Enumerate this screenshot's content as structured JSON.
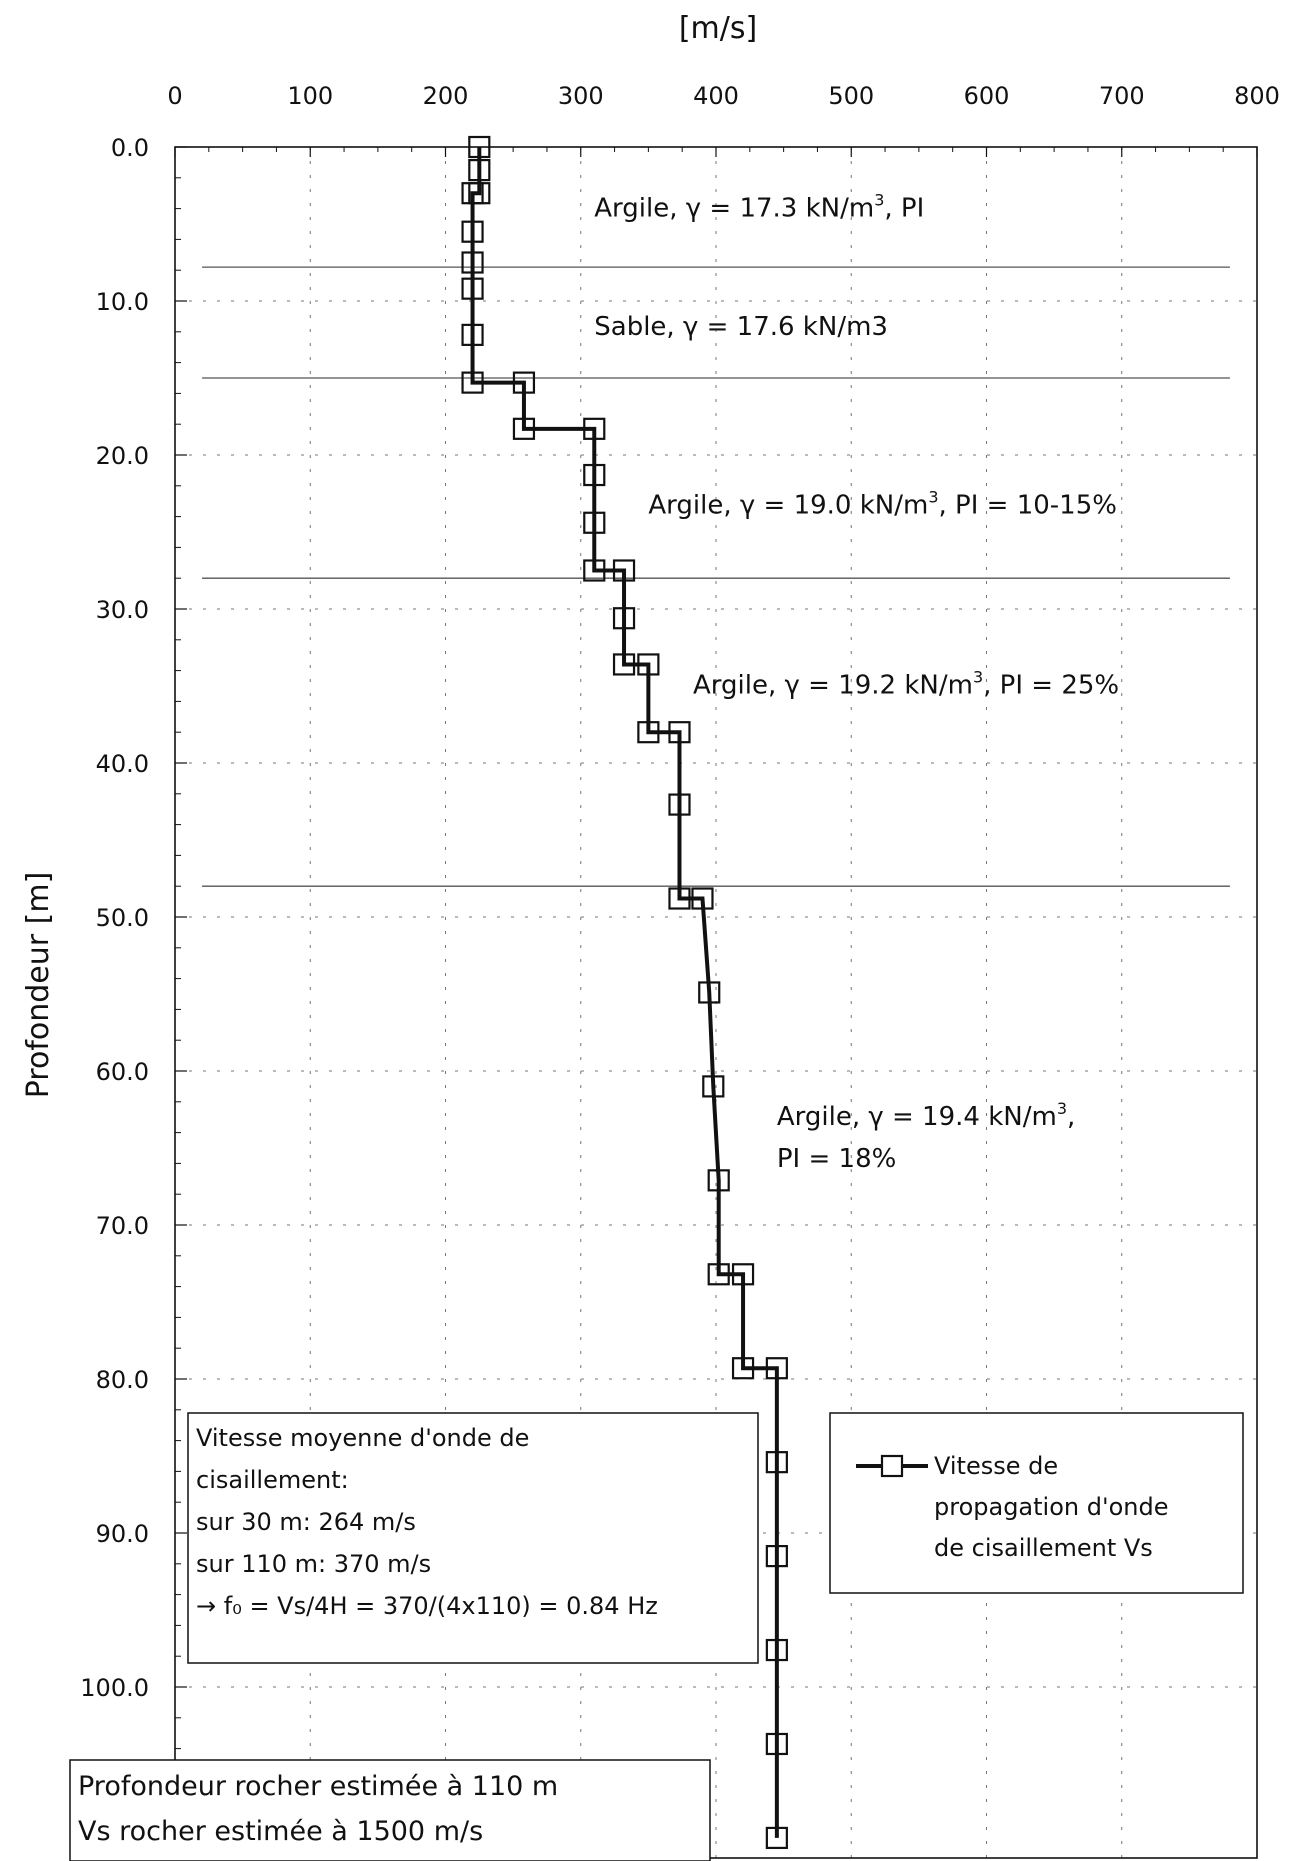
{
  "chart_data": {
    "type": "line",
    "x_axis_label": "[m/s]",
    "y_axis_label": "Profondeur [m]",
    "x_range": [
      0,
      800
    ],
    "y_range": [
      0,
      110
    ],
    "y_inverted": true,
    "x_tick_labels": [
      "0",
      "100",
      "200",
      "300",
      "400",
      "500",
      "600",
      "700",
      "800"
    ],
    "y_tick_labels": [
      "0.0",
      "10.0",
      "20.0",
      "30.0",
      "40.0",
      "50.0",
      "60.0",
      "70.0",
      "80.0",
      "90.0",
      "100.0"
    ],
    "grid": true,
    "series": [
      {
        "name": "Vitesse de propagation d'onde de cisaillement Vs",
        "points": [
          [
            225,
            0
          ],
          [
            225,
            1.5
          ],
          [
            225,
            3
          ],
          [
            220,
            3
          ],
          [
            220,
            5.5
          ],
          [
            220,
            7.5
          ],
          [
            220,
            9.2
          ],
          [
            220,
            12.2
          ],
          [
            220,
            15.3
          ],
          [
            258,
            15.3
          ],
          [
            258,
            18.3
          ],
          [
            310,
            18.3
          ],
          [
            310,
            21.3
          ],
          [
            310,
            24.4
          ],
          [
            310,
            27.5
          ],
          [
            332,
            27.5
          ],
          [
            332,
            30.6
          ],
          [
            332,
            33.6
          ],
          [
            350,
            33.6
          ],
          [
            350,
            38
          ],
          [
            373,
            38
          ],
          [
            373,
            42.7
          ],
          [
            373,
            48.8
          ],
          [
            390,
            48.8
          ],
          [
            395,
            54.9
          ],
          [
            398,
            61
          ],
          [
            402,
            67.1
          ],
          [
            402,
            73.2
          ],
          [
            420,
            73.2
          ],
          [
            420,
            79.3
          ],
          [
            445,
            79.3
          ],
          [
            445,
            85.4
          ],
          [
            445,
            91.5
          ],
          [
            445,
            97.6
          ],
          [
            445,
            103.7
          ],
          [
            445,
            109.8
          ]
        ],
        "markers": [
          [
            225,
            0
          ],
          [
            225,
            1.5
          ],
          [
            225,
            3
          ],
          [
            220,
            3
          ],
          [
            220,
            5.5
          ],
          [
            220,
            7.5
          ],
          [
            220,
            9.2
          ],
          [
            220,
            12.2
          ],
          [
            220,
            15.3
          ],
          [
            258,
            15.3
          ],
          [
            258,
            18.3
          ],
          [
            310,
            18.3
          ],
          [
            310,
            21.3
          ],
          [
            310,
            24.4
          ],
          [
            310,
            27.5
          ],
          [
            332,
            27.5
          ],
          [
            332,
            30.6
          ],
          [
            332,
            33.6
          ],
          [
            350,
            33.6
          ],
          [
            350,
            38
          ],
          [
            373,
            38
          ],
          [
            373,
            42.7
          ],
          [
            373,
            48.8
          ],
          [
            390,
            48.8
          ],
          [
            395,
            54.9
          ],
          [
            398,
            61
          ],
          [
            402,
            67.1
          ],
          [
            402,
            73.2
          ],
          [
            420,
            73.2
          ],
          [
            420,
            79.3
          ],
          [
            445,
            79.3
          ],
          [
            445,
            85.4
          ],
          [
            445,
            91.5
          ],
          [
            445,
            97.6
          ],
          [
            445,
            103.7
          ],
          [
            445,
            109.8
          ]
        ]
      }
    ],
    "layer_boundaries_m": [
      7.8,
      15,
      28,
      48
    ],
    "annotations": [
      {
        "lines": [
          {
            "pre": "Argile, γ = 17.3 kN/m",
            "sup": "3",
            "post": ", PI"
          }
        ],
        "x": 310,
        "y": 4.5
      },
      {
        "lines": [
          {
            "pre": "Sable, γ = 17.6 kN/m3",
            "sup": "",
            "post": ""
          }
        ],
        "x": 310,
        "y": 12.2
      },
      {
        "lines": [
          {
            "pre": "Argile, γ = 19.0 kN/m",
            "sup": "3",
            "post": ", PI = 10-15%"
          }
        ],
        "x": 350,
        "y": 23.8
      },
      {
        "lines": [
          {
            "pre": "Argile, γ = 19.2 kN/m",
            "sup": "3",
            "post": ", PI = 25%"
          }
        ],
        "x": 383,
        "y": 35.5
      },
      {
        "lines": [
          {
            "pre": "Argile, γ = 19.4 kN/m",
            "sup": "3",
            "post": ","
          },
          {
            "pre": "PI = 18%",
            "sup": "",
            "post": ""
          }
        ],
        "x": 445,
        "y": 63.5
      }
    ],
    "legend_label_lines": [
      "Vitesse de",
      "propagation d'onde",
      "de cisaillement Vs"
    ],
    "info_box_lines": [
      "Vitesse moyenne d'onde de",
      "cisaillement:",
      "sur 30 m:   264 m/s",
      "sur 110 m: 370 m/s",
      "→ f₀ = Vs/4H = 370/(4x110) = 0.84 Hz"
    ],
    "bottom_box_lines": [
      "Profondeur rocher estimée à 110 m",
      "Vs rocher estimée à 1500 m/s"
    ]
  }
}
